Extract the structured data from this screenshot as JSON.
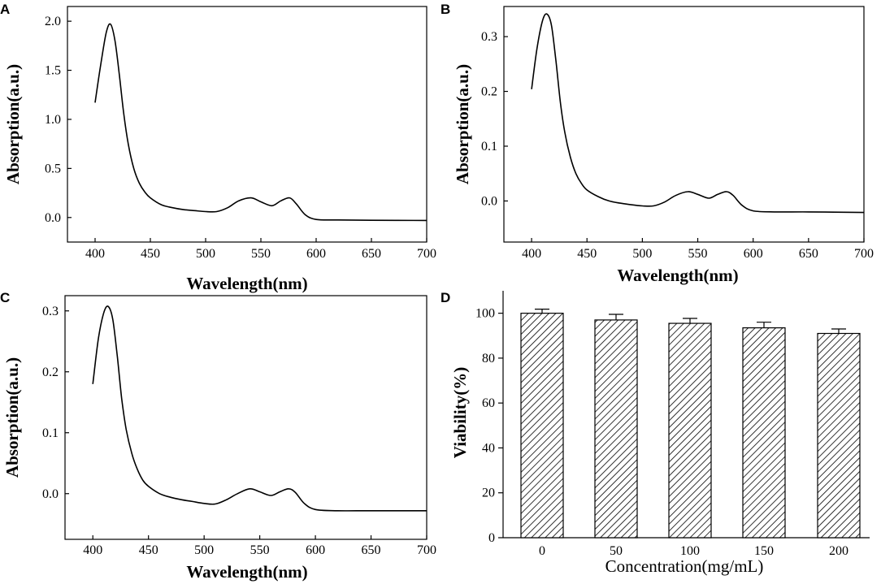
{
  "chart_data": [
    {
      "panel": "A",
      "type": "line",
      "xlabel": "Wavelength(nm)",
      "ylabel": "Absorption(a.u.)",
      "xlim": [
        375,
        700
      ],
      "ylim": [
        -0.25,
        2.15
      ],
      "xticks": [
        400,
        450,
        500,
        550,
        600,
        650,
        700
      ],
      "yticks": [
        0.0,
        0.5,
        1.0,
        1.5,
        2.0
      ],
      "ytick_labels": [
        "0.0",
        "0.5",
        "1.0",
        "1.5",
        "2.0"
      ],
      "series": [
        {
          "name": "A",
          "x": [
            400,
            405,
            410,
            414,
            418,
            422,
            426,
            430,
            435,
            440,
            445,
            450,
            460,
            470,
            480,
            490,
            500,
            510,
            520,
            530,
            541,
            550,
            560,
            568,
            576,
            582,
            590,
            600,
            620,
            650,
            700
          ],
          "y": [
            1.17,
            1.55,
            1.88,
            1.97,
            1.8,
            1.45,
            1.05,
            0.75,
            0.5,
            0.35,
            0.26,
            0.2,
            0.13,
            0.1,
            0.08,
            0.07,
            0.06,
            0.06,
            0.1,
            0.17,
            0.2,
            0.16,
            0.12,
            0.17,
            0.2,
            0.14,
            0.03,
            -0.02,
            -0.025,
            -0.028,
            -0.03
          ]
        }
      ]
    },
    {
      "panel": "B",
      "type": "line",
      "xlabel": "Wavelength(nm)",
      "ylabel": "Absorption(a.u.)",
      "xlim": [
        375,
        700
      ],
      "ylim": [
        -0.075,
        0.355
      ],
      "xticks": [
        400,
        450,
        500,
        550,
        600,
        650,
        700
      ],
      "yticks": [
        0.0,
        0.1,
        0.2,
        0.3
      ],
      "ytick_labels": [
        "0.0",
        "0.1",
        "0.2",
        "0.3"
      ],
      "series": [
        {
          "name": "B",
          "x": [
            400,
            405,
            410,
            414,
            418,
            422,
            426,
            430,
            435,
            440,
            445,
            450,
            460,
            470,
            480,
            490,
            500,
            510,
            520,
            530,
            541,
            550,
            560,
            568,
            576,
            582,
            590,
            600,
            620,
            650,
            700
          ],
          "y": [
            0.204,
            0.28,
            0.33,
            0.341,
            0.32,
            0.255,
            0.18,
            0.125,
            0.08,
            0.05,
            0.032,
            0.02,
            0.008,
            0.0,
            -0.004,
            -0.007,
            -0.009,
            -0.009,
            -0.002,
            0.01,
            0.017,
            0.012,
            0.005,
            0.012,
            0.017,
            0.01,
            -0.008,
            -0.018,
            -0.02,
            -0.02,
            -0.021
          ]
        }
      ]
    },
    {
      "panel": "C",
      "type": "line",
      "xlabel": "Wavelength(nm)",
      "ylabel": "Absorption(a.u.)",
      "xlim": [
        375,
        700
      ],
      "ylim": [
        -0.075,
        0.325
      ],
      "xticks": [
        400,
        450,
        500,
        550,
        600,
        650,
        700
      ],
      "yticks": [
        0.0,
        0.1,
        0.2,
        0.3
      ],
      "ytick_labels": [
        "0.0",
        "0.1",
        "0.2",
        "0.3"
      ],
      "series": [
        {
          "name": "C",
          "x": [
            400,
            405,
            410,
            414,
            418,
            422,
            426,
            430,
            435,
            440,
            445,
            450,
            460,
            470,
            480,
            490,
            500,
            510,
            520,
            530,
            541,
            550,
            560,
            568,
            576,
            582,
            590,
            600,
            620,
            650,
            700
          ],
          "y": [
            0.18,
            0.255,
            0.298,
            0.307,
            0.285,
            0.225,
            0.155,
            0.105,
            0.066,
            0.04,
            0.022,
            0.012,
            0.0,
            -0.006,
            -0.01,
            -0.013,
            -0.016,
            -0.017,
            -0.01,
            0.0,
            0.008,
            0.003,
            -0.003,
            0.003,
            0.008,
            0.002,
            -0.016,
            -0.026,
            -0.028,
            -0.028,
            -0.028
          ]
        }
      ]
    },
    {
      "panel": "D",
      "type": "bar",
      "xlabel": "Concentration(mg/mL)",
      "ylabel": "Viability(%)",
      "ylim": [
        0,
        110
      ],
      "yticks": [
        0,
        20,
        40,
        60,
        80,
        100
      ],
      "ytick_labels": [
        "0",
        "20",
        "40",
        "60",
        "80",
        "100"
      ],
      "categories": [
        "0",
        "50",
        "100",
        "150",
        "200"
      ],
      "values": [
        100,
        97,
        95.5,
        93.5,
        91
      ],
      "errors": [
        1.8,
        2.5,
        2.2,
        2.5,
        2.0
      ]
    }
  ]
}
